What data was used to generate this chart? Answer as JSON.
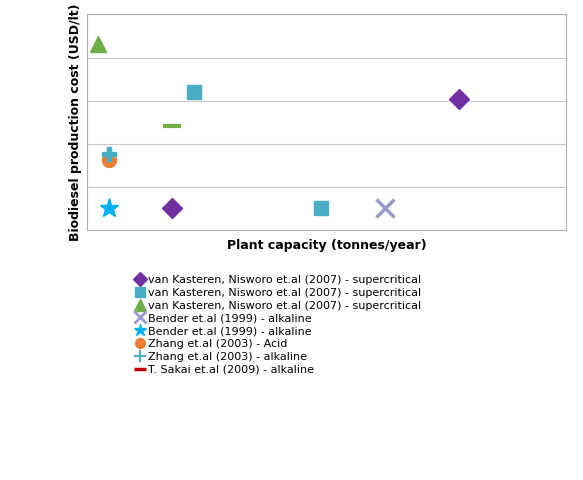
{
  "title": "",
  "xlabel": "Plant capacity (tonnes/year)",
  "ylabel": "Biodiesel production cost (USD/lt)",
  "series": [
    {
      "label": "van Kasteren, Nisworo et.al (2007) - supercritical",
      "x": [
        35,
        8
      ],
      "y": [
        5.8,
        1.0
      ],
      "marker": "D",
      "color": "#7030a0",
      "markersize": 10,
      "linestyle": "none"
    },
    {
      "label": "van Kasteren, Nisworo et.al (2007) - supercritical",
      "x": [
        10,
        22
      ],
      "y": [
        6.1,
        1.0
      ],
      "marker": "s",
      "color": "#4bacc6",
      "markersize": 10,
      "linestyle": "none"
    },
    {
      "label": "van Kasteren, Nisworo et.al (2007) - supercritical",
      "x": [
        1
      ],
      "y": [
        8.2
      ],
      "marker": "^",
      "color": "#70ad47",
      "markersize": 12,
      "linestyle": "none"
    },
    {
      "label": "Bender et.al (1999) - alkaline",
      "x": [
        28
      ],
      "y": [
        1.0
      ],
      "marker": "x",
      "color": "#9999cc",
      "markersize": 13,
      "linestyle": "none",
      "markeredgewidth": 2.5
    },
    {
      "label": "Bender et.al (1999) - alkaline",
      "x": [
        2
      ],
      "y": [
        1.0
      ],
      "marker": "*",
      "color": "#00b0f0",
      "markersize": 14,
      "linestyle": "none"
    },
    {
      "label": "Zhang et.al (2003) - Acid",
      "x": [
        2
      ],
      "y": [
        3.1
      ],
      "marker": "o",
      "color": "#ed7d31",
      "markersize": 10,
      "linestyle": "none"
    },
    {
      "label": "Zhang et.al (2003) - alkaline",
      "x": [
        2
      ],
      "y": [
        3.35
      ],
      "marker": "P",
      "color": "#4bacc6",
      "markersize": 10,
      "linestyle": "none"
    },
    {
      "label": "T. Sakai et.al (2009) - alkaline",
      "x": [
        8
      ],
      "y": [
        4.6
      ],
      "marker": "_",
      "color": "#70ad47",
      "markersize": 13,
      "linestyle": "none",
      "markeredgewidth": 3
    }
  ],
  "xlim": [
    0,
    45
  ],
  "ylim": [
    0,
    9.5
  ],
  "yticks": [
    0,
    1.9,
    3.8,
    5.7,
    7.6,
    9.5
  ],
  "grid_color": "#c8c8c8",
  "bg_color": "#ffffff",
  "legend_fontsize": 8,
  "axis_label_fontsize": 9
}
